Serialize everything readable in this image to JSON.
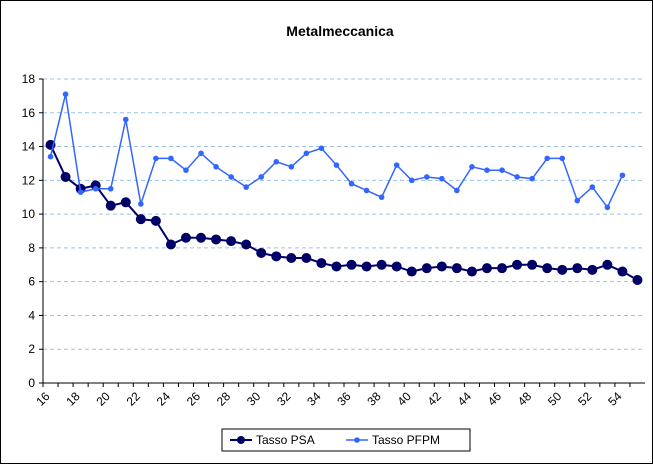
{
  "chart_data": {
    "type": "line",
    "title": "Metalmeccanica",
    "categories": [
      16,
      null,
      18,
      null,
      20,
      null,
      22,
      null,
      24,
      null,
      26,
      null,
      28,
      null,
      30,
      null,
      32,
      null,
      34,
      null,
      36,
      null,
      38,
      null,
      40,
      null,
      42,
      null,
      44,
      null,
      46,
      null,
      48,
      null,
      50,
      null,
      52,
      null,
      54,
      null
    ],
    "series": [
      {
        "name": "Tasso PSA",
        "color": "#000066",
        "values": [
          14.1,
          12.2,
          11.5,
          11.7,
          10.5,
          10.7,
          9.7,
          9.6,
          8.2,
          8.6,
          8.6,
          8.5,
          8.4,
          8.2,
          7.7,
          7.5,
          7.4,
          7.4,
          7.1,
          6.9,
          7.0,
          6.9,
          7.0,
          6.9,
          6.6,
          6.8,
          6.9,
          6.8,
          6.6,
          6.8,
          6.8,
          7.0,
          7.0,
          6.8,
          6.7,
          6.8,
          6.7,
          7.0,
          6.6,
          6.1
        ]
      },
      {
        "name": "Tasso PFPM",
        "color": "#3366ff",
        "values": [
          13.4,
          17.1,
          11.3,
          11.5,
          11.5,
          15.6,
          10.6,
          13.3,
          13.3,
          12.6,
          13.6,
          12.8,
          12.2,
          11.6,
          12.2,
          13.1,
          12.8,
          13.6,
          13.9,
          12.9,
          11.8,
          11.4,
          11.0,
          12.9,
          12.0,
          12.2,
          12.1,
          11.4,
          12.8,
          12.6,
          12.6,
          12.2,
          12.1,
          13.3,
          13.3,
          10.8,
          11.6,
          10.4,
          12.3,
          null
        ]
      }
    ],
    "ylim": [
      0,
      18
    ],
    "yticks": [
      0,
      2,
      4,
      6,
      8,
      10,
      12,
      14,
      16,
      18
    ],
    "grid": true,
    "legend": "bottom"
  }
}
